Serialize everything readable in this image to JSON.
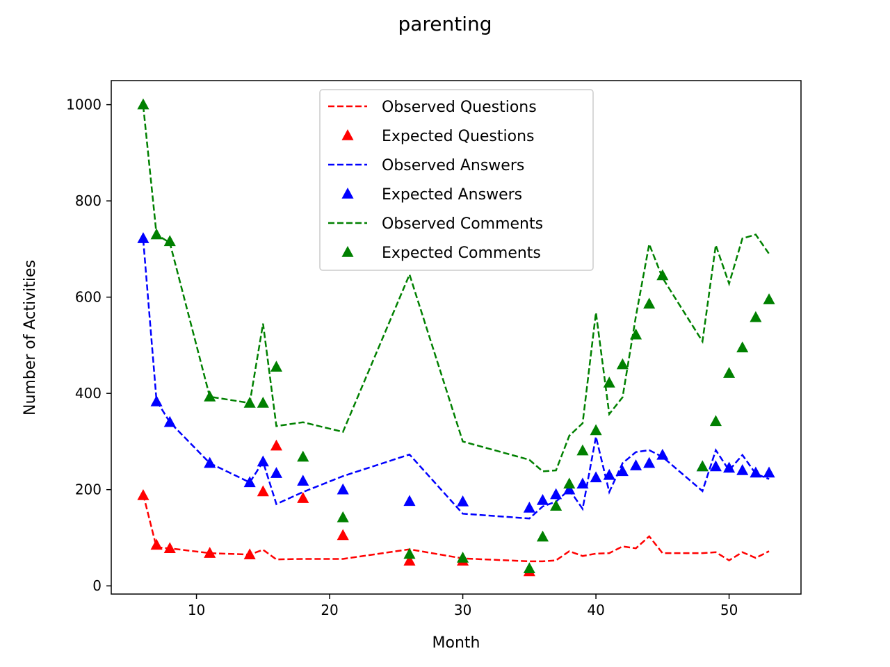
{
  "chart_data": {
    "type": "line",
    "title": "parenting",
    "xlabel": "Month",
    "ylabel": "Number of Activities",
    "xlim": [
      3.6,
      55.4
    ],
    "ylim": [
      -17,
      1050
    ],
    "xticks": [
      10,
      20,
      30,
      40,
      50
    ],
    "yticks": [
      0,
      200,
      400,
      600,
      800,
      1000
    ],
    "grid": false,
    "legend_position": "upper center",
    "series": [
      {
        "name": "Observed Questions",
        "style": "dashed",
        "color": "#ff0000",
        "x": [
          6,
          7,
          8,
          11,
          14,
          15,
          16,
          18,
          21,
          26,
          30,
          35,
          36,
          37,
          38,
          39,
          40,
          41,
          42,
          43,
          44,
          45,
          48,
          49,
          50,
          51,
          52,
          53
        ],
        "y": [
          190,
          80,
          78,
          68,
          65,
          75,
          55,
          56,
          56,
          76,
          57,
          51,
          51,
          53,
          72,
          62,
          67,
          68,
          82,
          78,
          103,
          68,
          68,
          70,
          53,
          70,
          58,
          72
        ]
      },
      {
        "name": "Expected Questions",
        "style": "marker",
        "color": "#ff0000",
        "x": [
          6,
          7,
          8,
          11,
          14,
          15,
          16,
          18,
          21,
          26,
          30,
          35
        ],
        "y": [
          188,
          85,
          78,
          68,
          65,
          196,
          291,
          182,
          105,
          52,
          52,
          30
        ]
      },
      {
        "name": "Observed Answers",
        "style": "dashed",
        "color": "#0000ff",
        "x": [
          6,
          7,
          8,
          11,
          14,
          15,
          16,
          18,
          21,
          26,
          30,
          35,
          36,
          37,
          38,
          39,
          40,
          41,
          42,
          43,
          44,
          45,
          48,
          49,
          50,
          51,
          52,
          53
        ],
        "y": [
          720,
          385,
          340,
          255,
          215,
          258,
          170,
          195,
          228,
          273,
          150,
          140,
          165,
          175,
          200,
          160,
          310,
          195,
          255,
          278,
          282,
          268,
          197,
          282,
          240,
          272,
          233,
          222
        ]
      },
      {
        "name": "Expected Answers",
        "style": "marker",
        "color": "#0000ff",
        "x": [
          6,
          7,
          8,
          11,
          14,
          15,
          16,
          18,
          21,
          26,
          30,
          35,
          36,
          37,
          38,
          39,
          40,
          41,
          42,
          43,
          44,
          45,
          48,
          49,
          50,
          51,
          52,
          53
        ],
        "y": [
          722,
          383,
          340,
          255,
          215,
          258,
          234,
          218,
          200,
          176,
          175,
          162,
          178,
          190,
          200,
          212,
          225,
          230,
          238,
          250,
          255,
          272,
          248,
          248,
          245,
          240,
          235,
          235
        ]
      },
      {
        "name": "Observed Comments",
        "style": "dashed",
        "color": "#008000",
        "x": [
          6,
          7,
          8,
          11,
          14,
          15,
          16,
          18,
          21,
          26,
          30,
          35,
          36,
          37,
          38,
          39,
          40,
          41,
          42,
          43,
          44,
          45,
          48,
          49,
          50,
          51,
          52,
          53
        ],
        "y": [
          998,
          730,
          713,
          393,
          380,
          545,
          332,
          340,
          320,
          647,
          300,
          262,
          238,
          240,
          312,
          338,
          568,
          357,
          392,
          560,
          710,
          640,
          508,
          708,
          628,
          722,
          730,
          690
        ]
      },
      {
        "name": "Expected Comments",
        "style": "marker",
        "color": "#008000",
        "x": [
          6,
          7,
          8,
          11,
          14,
          15,
          16,
          18,
          21,
          26,
          30,
          35,
          36,
          37,
          38,
          39,
          40,
          41,
          42,
          43,
          44,
          45,
          48,
          49,
          50,
          51,
          52,
          53
        ],
        "y": [
          1000,
          730,
          716,
          393,
          380,
          380,
          455,
          268,
          142,
          66,
          58,
          36,
          102,
          166,
          212,
          281,
          323,
          422,
          460,
          522,
          586,
          645,
          248,
          342,
          442,
          495,
          558,
          595
        ]
      }
    ]
  }
}
